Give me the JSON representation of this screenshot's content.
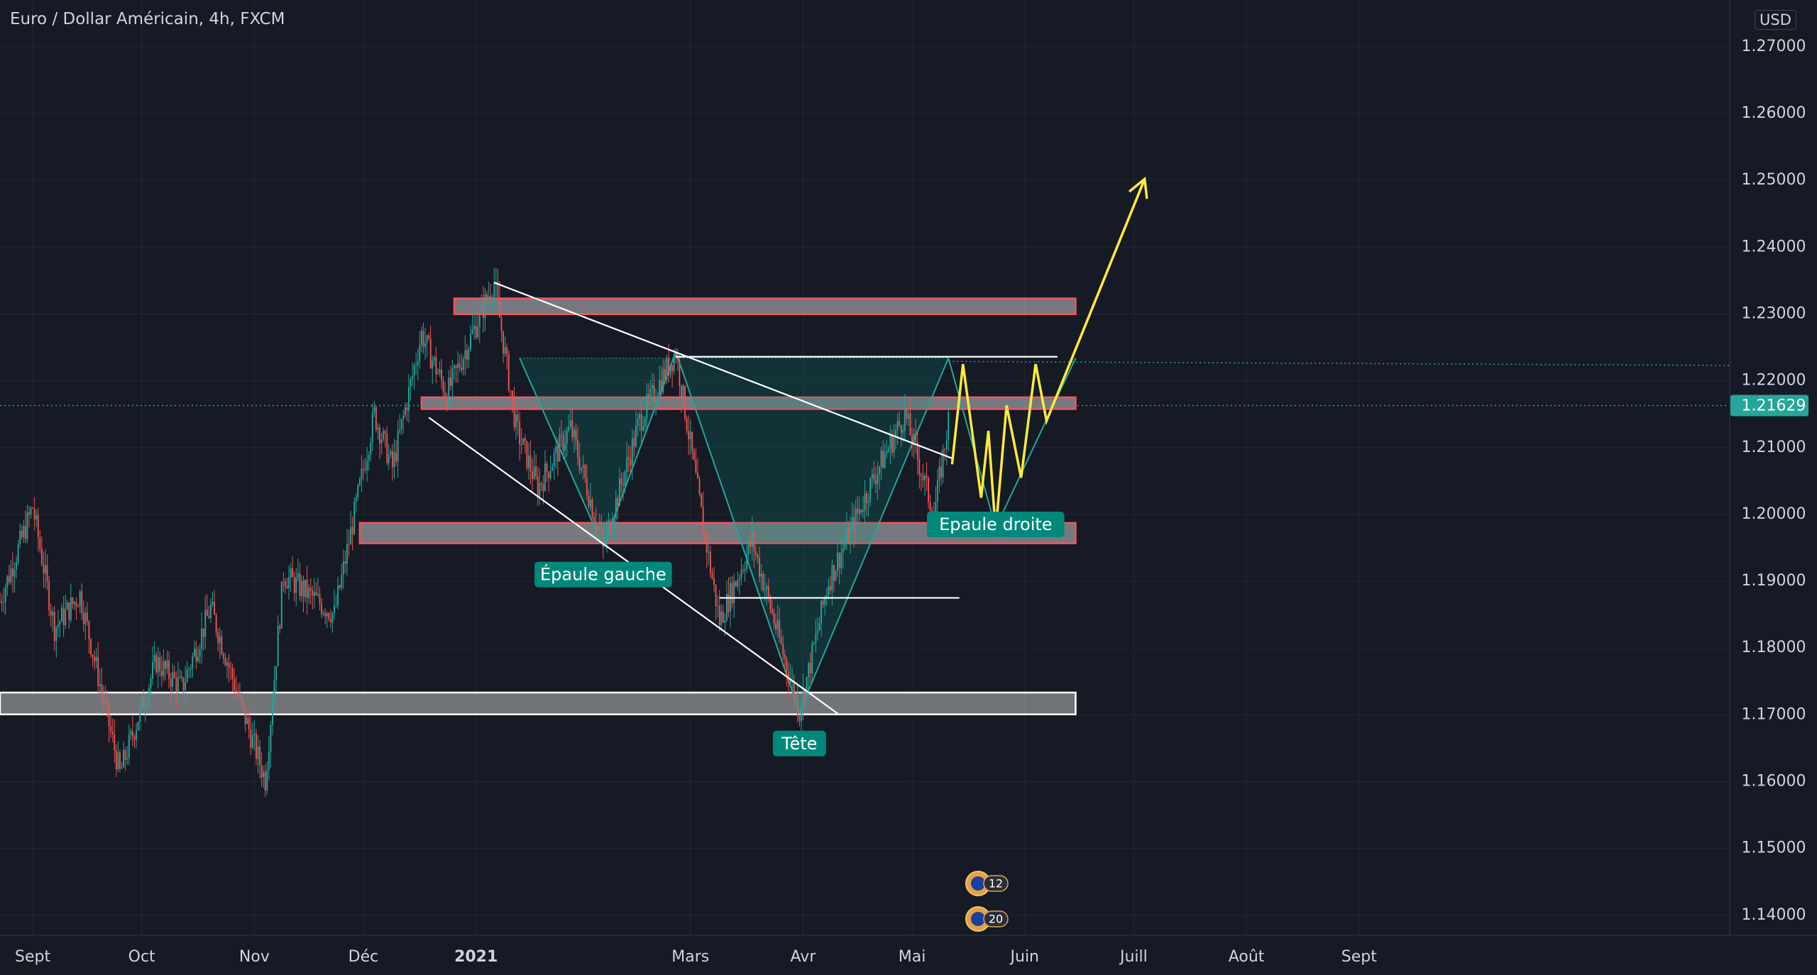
{
  "header": {
    "title": "Euro / Dollar Américain, 4h, FXCM",
    "currency": "USD"
  },
  "colors": {
    "bg": "#161a25",
    "grid": "#232733",
    "text": "#d1d4dc",
    "up": "#26a69a",
    "down": "#ef5350",
    "teal": "#00897b",
    "zone_red": "#f7525f",
    "zone_white": "#ffffff",
    "projection": "#ffeb3b",
    "label_bg": "#00897b"
  },
  "chart_data": {
    "type": "candlestick",
    "ylim": [
      1.137,
      1.277
    ],
    "y_ticks": [
      "1.14000",
      "1.15000",
      "1.16000",
      "1.17000",
      "1.18000",
      "1.19000",
      "1.20000",
      "1.21000",
      "1.22000",
      "1.23000",
      "1.24000",
      "1.25000",
      "1.26000"
    ],
    "y_tick_values": [
      1.14,
      1.15,
      1.16,
      1.17,
      1.18,
      1.19,
      1.2,
      1.21,
      1.22,
      1.23,
      1.24,
      1.25,
      1.26
    ],
    "top_tick_partial": "1.27000",
    "x_labels": [
      "Sept",
      "Oct",
      "Nov",
      "Déc",
      "2021",
      "Mars",
      "Avr",
      "Mai",
      "Juin",
      "Juill",
      "Août",
      "Sept"
    ],
    "x_label_dates": [
      "2020-09-01",
      "2020-10-01",
      "2020-11-01",
      "2020-12-01",
      "2021-01-01",
      "2021-03-01",
      "2021-04-01",
      "2021-05-01",
      "2021-06-01",
      "2021-07-01",
      "2021-08-01",
      "2021-09-01"
    ],
    "x_range": [
      "2020-08-23",
      "2021-12-12"
    ],
    "last_price": "1.21629",
    "last_price_value": 1.21629,
    "price_path": [
      [
        "2020-08-23",
        1.187
      ],
      [
        "2020-09-01",
        1.2011
      ],
      [
        "2020-09-07",
        1.183
      ],
      [
        "2020-09-14",
        1.188
      ],
      [
        "2020-09-25",
        1.1612
      ],
      [
        "2020-10-05",
        1.178
      ],
      [
        "2020-10-12",
        1.174
      ],
      [
        "2020-10-20",
        1.186
      ],
      [
        "2020-10-28",
        1.172
      ],
      [
        "2020-11-04",
        1.1603
      ],
      [
        "2020-11-09",
        1.191
      ],
      [
        "2020-11-23",
        1.185
      ],
      [
        "2020-12-04",
        1.215
      ],
      [
        "2020-12-09",
        1.207
      ],
      [
        "2020-12-17",
        1.227
      ],
      [
        "2020-12-24",
        1.218
      ],
      [
        "2021-01-06",
        1.2349
      ],
      [
        "2021-01-12",
        1.213
      ],
      [
        "2021-01-18",
        1.204
      ],
      [
        "2021-01-27",
        1.213
      ],
      [
        "2021-02-05",
        1.1952
      ],
      [
        "2021-02-15",
        1.214
      ],
      [
        "2021-02-25",
        1.2243
      ],
      [
        "2021-03-04",
        1.2
      ],
      [
        "2021-03-09",
        1.184
      ],
      [
        "2021-03-18",
        1.196
      ],
      [
        "2021-03-31",
        1.1704
      ],
      [
        "2021-04-08",
        1.19
      ],
      [
        "2021-04-20",
        1.205
      ],
      [
        "2021-04-29",
        1.215
      ],
      [
        "2021-05-07",
        1.2
      ],
      [
        "2021-05-11",
        1.214
      ]
    ],
    "zones": [
      {
        "color": "red",
        "from": "2020-12-26",
        "to": "2021-06-15",
        "low": 1.2305,
        "high": 1.2318
      },
      {
        "color": "red",
        "from": "2020-12-17",
        "to": "2021-06-15",
        "low": 1.2163,
        "high": 1.217
      },
      {
        "color": "red",
        "from": "2020-11-30",
        "to": "2021-06-15",
        "low": 1.1962,
        "high": 1.1982
      },
      {
        "color": "white",
        "from": "2020-08-23",
        "to": "2021-06-15",
        "low": 1.1706,
        "high": 1.1728
      }
    ],
    "pattern_labels": [
      {
        "key": "left_shoulder",
        "text": "Épaule gauche",
        "date": "2021-02-05",
        "price": 1.191
      },
      {
        "key": "head",
        "text": "Tête",
        "date": "2021-03-31",
        "price": 1.1657
      },
      {
        "key": "right_shoulder",
        "text": "Epaule droite",
        "date": "2021-05-24",
        "price": 1.1985
      }
    ],
    "neckline_price": 1.2234,
    "projection_path": [
      [
        "2021-05-12",
        1.2075
      ],
      [
        "2021-05-15",
        1.2225
      ],
      [
        "2021-05-20",
        1.2025
      ],
      [
        "2021-05-22",
        1.2125
      ],
      [
        "2021-05-24",
        1.1975
      ],
      [
        "2021-05-27",
        1.2163
      ],
      [
        "2021-05-31",
        1.2055
      ],
      [
        "2021-06-04",
        1.2225
      ],
      [
        "2021-06-07",
        1.214
      ],
      [
        "2021-07-04",
        1.2502
      ]
    ],
    "bottom_badges": [
      "12",
      "20"
    ],
    "grid": true
  }
}
